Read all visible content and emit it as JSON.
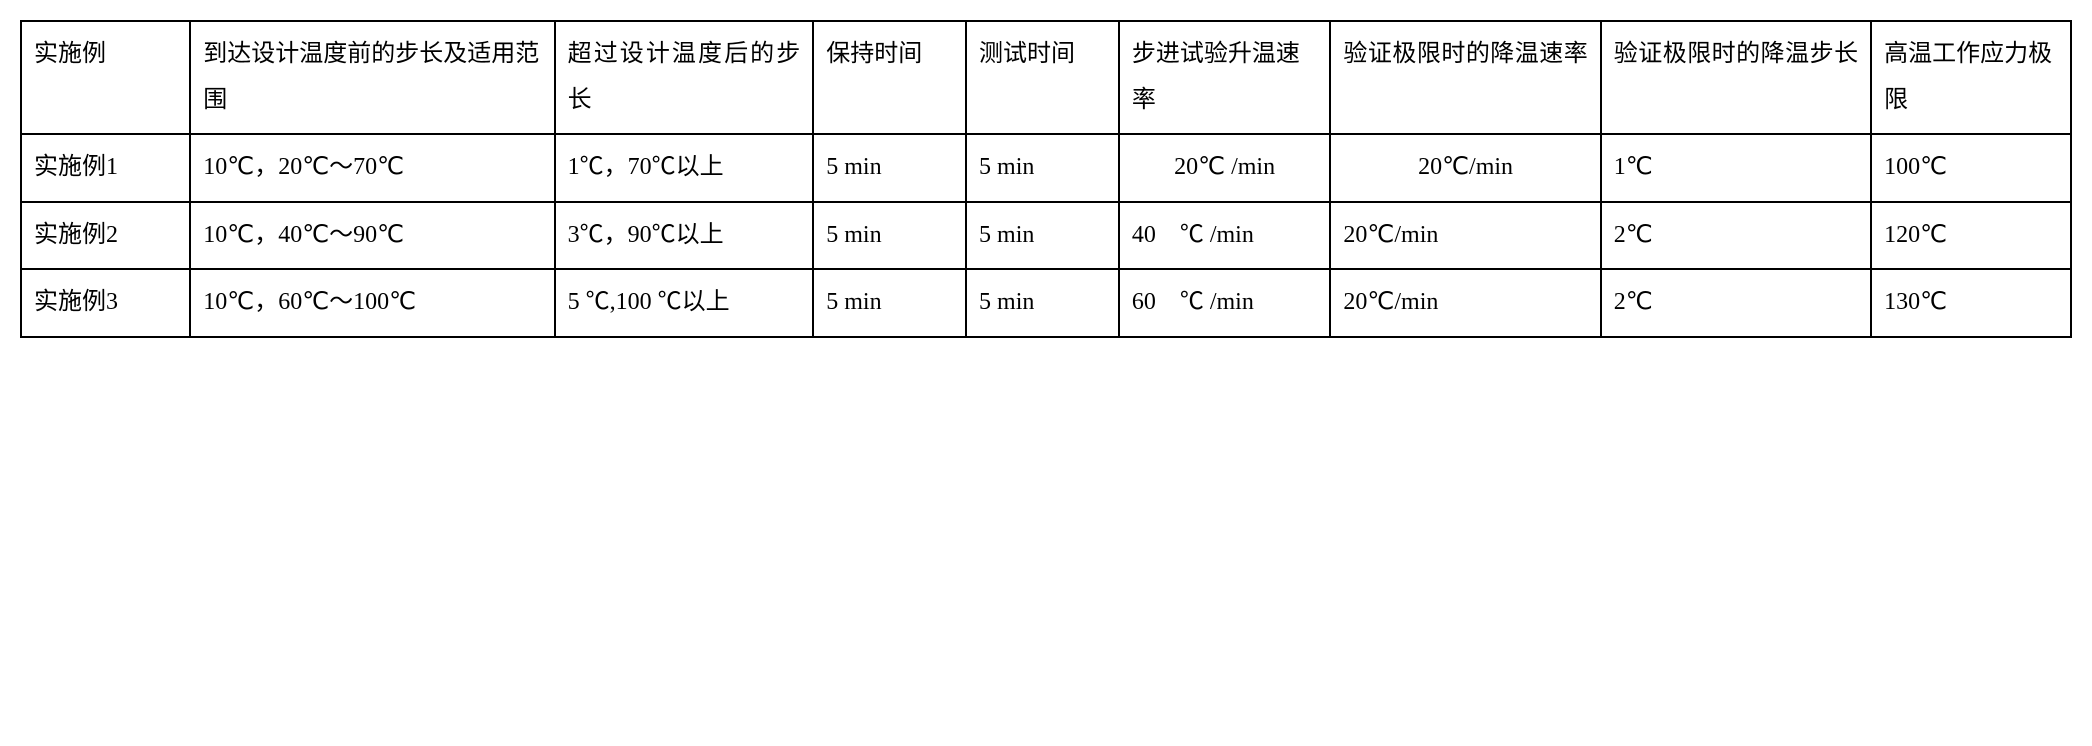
{
  "table": {
    "font_size_pt": 24,
    "border_color": "#000000",
    "background_color": "#ffffff",
    "text_color": "#000000",
    "columns": [
      {
        "width_pct": 7.2,
        "header": "实施例"
      },
      {
        "width_pct": 15.5,
        "header": "到达设计温度前的步长及适用范围"
      },
      {
        "width_pct": 11,
        "header": "超过设计温度后的步长"
      },
      {
        "width_pct": 6.5,
        "header": "保持时间"
      },
      {
        "width_pct": 6.5,
        "header": "测试时间"
      },
      {
        "width_pct": 9,
        "header": "步进试验升温速率"
      },
      {
        "width_pct": 11.5,
        "header": "验证极限时的降温速率"
      },
      {
        "width_pct": 11.5,
        "header": "验证极限时的降温步长"
      },
      {
        "width_pct": 8.5,
        "header": "高温工作应力极限"
      }
    ],
    "rows": [
      {
        "label": "实施例1",
        "step_before": "10℃，20℃～70℃",
        "step_after": "1℃，70℃以上",
        "hold_time": "5 min",
        "test_time": "5 min",
        "ramp_rate": "20℃ /min",
        "cool_rate": "20℃/min",
        "cool_step": "1℃",
        "limit": "100℃"
      },
      {
        "label": "实施例2",
        "step_before": "10℃，40℃～90℃",
        "step_after": "3℃，90℃以上",
        "hold_time": "5 min",
        "test_time": "5 min",
        "ramp_rate": "40　℃ /min",
        "cool_rate": "20℃/min",
        "cool_step": "2℃",
        "limit": "120℃"
      },
      {
        "label": "实施例3",
        "step_before": "10℃，60℃～100℃",
        "step_after": "5 ℃,100 ℃以上",
        "hold_time": "5 min",
        "test_time": "5 min",
        "ramp_rate": "60　℃ /min",
        "cool_rate": "20℃/min",
        "cool_step": "2℃",
        "limit": "130℃"
      }
    ]
  }
}
